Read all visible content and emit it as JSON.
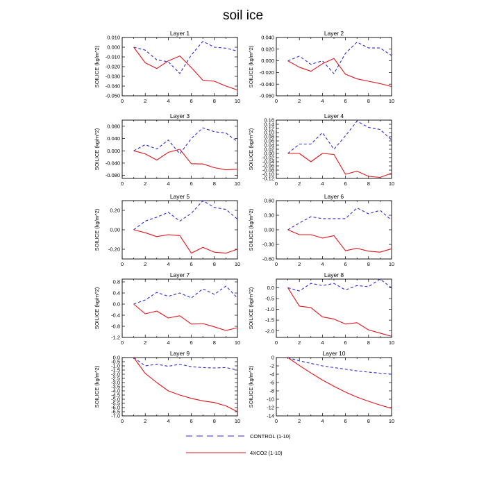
{
  "figure_title": "soil ice",
  "colors": {
    "control": "#2b2bd6",
    "co2": "#e3141b",
    "axis": "#000000"
  },
  "legend": [
    {
      "label": "CONTROL (1-10)",
      "style": "dashed",
      "color": "#2b2bd6"
    },
    {
      "label": "4XCO2 (1-10)",
      "style": "solid",
      "color": "#e3141b"
    }
  ],
  "chart_data": [
    {
      "type": "line",
      "title": "Layer 1",
      "ylabel": "SOILICE  (kg/m^2)",
      "x": [
        1,
        2,
        3,
        4,
        5,
        6,
        7,
        8,
        9,
        10
      ],
      "xlim": [
        0,
        10
      ],
      "xticks": [
        0,
        2,
        4,
        6,
        8,
        10
      ],
      "ylim": [
        -0.05,
        0.01
      ],
      "yticks": [
        -0.05,
        -0.04,
        -0.03,
        -0.02,
        -0.01,
        0,
        0.01
      ],
      "ytick_labels": [
        "-0.050",
        "-0.040",
        "-0.030",
        "-0.020",
        "-0.010",
        "0.000",
        "0.010"
      ],
      "series": [
        {
          "name": "CONTROL (1-10)",
          "style": "dashed",
          "values": [
            0,
            -0.003,
            -0.013,
            -0.015,
            -0.027,
            -0.008,
            0.006,
            0,
            -0.001,
            -0.004
          ]
        },
        {
          "name": "4XCO2 (1-10)",
          "style": "solid",
          "values": [
            0,
            -0.016,
            -0.022,
            -0.014,
            -0.009,
            -0.021,
            -0.034,
            -0.035,
            -0.04,
            -0.044
          ]
        }
      ]
    },
    {
      "type": "line",
      "title": "Layer 2",
      "ylabel": "SOILICE  (kg/m^2)",
      "x": [
        1,
        2,
        3,
        4,
        5,
        6,
        7,
        8,
        9,
        10
      ],
      "xlim": [
        0,
        10
      ],
      "xticks": [
        0,
        2,
        4,
        6,
        8,
        10
      ],
      "ylim": [
        -0.06,
        0.04
      ],
      "yticks": [
        -0.06,
        -0.04,
        -0.02,
        0,
        0.02,
        0.04
      ],
      "ytick_labels": [
        "-0.060",
        "-0.040",
        "-0.020",
        "0.000",
        "0.020",
        "0.040"
      ],
      "series": [
        {
          "name": "CONTROL (1-10)",
          "style": "dashed",
          "values": [
            0,
            0.008,
            -0.006,
            0,
            -0.022,
            0.013,
            0.032,
            0.022,
            0.022,
            0.009
          ]
        },
        {
          "name": "4XCO2 (1-10)",
          "style": "solid",
          "values": [
            0,
            -0.011,
            -0.018,
            -0.005,
            0.004,
            -0.023,
            -0.031,
            -0.035,
            -0.039,
            -0.044
          ]
        }
      ]
    },
    {
      "type": "line",
      "title": "Layer 3",
      "ylabel": "SOILICE  (kg/m^2)",
      "x": [
        1,
        2,
        3,
        4,
        5,
        6,
        7,
        8,
        9,
        10
      ],
      "xlim": [
        0,
        10
      ],
      "xticks": [
        0,
        2,
        4,
        6,
        8,
        10
      ],
      "ylim": [
        -0.09,
        0.1
      ],
      "yticks": [
        -0.08,
        -0.04,
        0,
        0.04,
        0.08
      ],
      "ytick_labels": [
        "-0.080",
        "-0.040",
        "0.000",
        "0.040",
        "0.080"
      ],
      "series": [
        {
          "name": "CONTROL (1-10)",
          "style": "dashed",
          "values": [
            0,
            0.02,
            0.006,
            0.035,
            -0.01,
            0.04,
            0.075,
            0.062,
            0.058,
            0.03
          ]
        },
        {
          "name": "4XCO2 (1-10)",
          "style": "solid",
          "values": [
            0,
            -0.01,
            -0.03,
            -0.005,
            0.005,
            -0.042,
            -0.043,
            -0.055,
            -0.062,
            -0.06
          ]
        }
      ]
    },
    {
      "type": "line",
      "title": "Layer 4",
      "ylabel": "SOILICE  (kg/m^2)",
      "x": [
        1,
        2,
        3,
        4,
        5,
        6,
        7,
        8,
        9,
        10
      ],
      "xlim": [
        0,
        10
      ],
      "xticks": [
        0,
        2,
        4,
        6,
        8,
        10
      ],
      "ylim": [
        -0.12,
        0.16
      ],
      "yticks": [
        -0.12,
        -0.1,
        -0.08,
        -0.06,
        -0.04,
        -0.02,
        0,
        0.02,
        0.04,
        0.06,
        0.08,
        0.1,
        0.12,
        0.14,
        0.16
      ],
      "ytick_labels": [
        "-0.12",
        "-0.10",
        "-0.08",
        "-0.06",
        "-0.04",
        "-0.02",
        "0.00",
        "0.02",
        "0.04",
        "0.06",
        "0.08",
        "0.10",
        "0.12",
        "0.14",
        "0.16"
      ],
      "series": [
        {
          "name": "CONTROL (1-10)",
          "style": "dashed",
          "values": [
            0,
            0.045,
            0.045,
            0.1,
            0.02,
            0.085,
            0.155,
            0.125,
            0.115,
            0.065
          ]
        },
        {
          "name": "4XCO2 (1-10)",
          "style": "solid",
          "values": [
            0,
            0,
            -0.04,
            0,
            -0.005,
            -0.1,
            -0.085,
            -0.11,
            -0.115,
            -0.095
          ]
        }
      ]
    },
    {
      "type": "line",
      "title": "Layer 5",
      "ylabel": "SOILICE  (kg/m^2)",
      "x": [
        1,
        2,
        3,
        4,
        5,
        6,
        7,
        8,
        9,
        10
      ],
      "xlim": [
        0,
        10
      ],
      "xticks": [
        0,
        2,
        4,
        6,
        8,
        10
      ],
      "ylim": [
        -0.3,
        0.3
      ],
      "yticks": [
        -0.2,
        0,
        0.2
      ],
      "ytick_labels": [
        "-0.20",
        "0.00",
        "0.20"
      ],
      "series": [
        {
          "name": "CONTROL (1-10)",
          "style": "dashed",
          "values": [
            0,
            0.09,
            0.13,
            0.18,
            0.09,
            0.17,
            0.3,
            0.23,
            0.21,
            0.11
          ]
        },
        {
          "name": "4XCO2 (1-10)",
          "style": "solid",
          "values": [
            0,
            -0.03,
            -0.07,
            -0.05,
            -0.06,
            -0.24,
            -0.18,
            -0.23,
            -0.24,
            -0.2
          ]
        }
      ]
    },
    {
      "type": "line",
      "title": "Layer 6",
      "ylabel": "SOILICE  (kg/m^2)",
      "x": [
        1,
        2,
        3,
        4,
        5,
        6,
        7,
        8,
        9,
        10
      ],
      "xlim": [
        0,
        10
      ],
      "xticks": [
        0,
        2,
        4,
        6,
        8,
        10
      ],
      "ylim": [
        -0.6,
        0.6
      ],
      "yticks": [
        -0.6,
        -0.3,
        0,
        0.3,
        0.6
      ],
      "ytick_labels": [
        "-0.60",
        "-0.30",
        "0.00",
        "0.30",
        "0.60"
      ],
      "series": [
        {
          "name": "CONTROL (1-10)",
          "style": "dashed",
          "values": [
            0,
            0.14,
            0.27,
            0.23,
            0.23,
            0.23,
            0.45,
            0.33,
            0.4,
            0.2
          ]
        },
        {
          "name": "4XCO2 (1-10)",
          "style": "solid",
          "values": [
            0,
            -0.1,
            -0.1,
            -0.17,
            -0.12,
            -0.43,
            -0.38,
            -0.44,
            -0.46,
            -0.39
          ]
        }
      ]
    },
    {
      "type": "line",
      "title": "Layer 7",
      "ylabel": "SOILICE  (kg/m^2)",
      "x": [
        1,
        2,
        3,
        4,
        5,
        6,
        7,
        8,
        9,
        10
      ],
      "xlim": [
        0,
        10
      ],
      "xticks": [
        0,
        2,
        4,
        6,
        8,
        10
      ],
      "ylim": [
        -1.2,
        0.9
      ],
      "yticks": [
        -1.2,
        -0.8,
        -0.4,
        0,
        0.4,
        0.8
      ],
      "ytick_labels": [
        "-1.2",
        "-0.8",
        "-0.4",
        "0.0",
        "0.4",
        "0.8"
      ],
      "series": [
        {
          "name": "CONTROL (1-10)",
          "style": "dashed",
          "values": [
            0,
            0.15,
            0.42,
            0.28,
            0.4,
            0.22,
            0.55,
            0.35,
            0.65,
            0.22
          ]
        },
        {
          "name": "4XCO2 (1-10)",
          "style": "solid",
          "values": [
            0,
            -0.35,
            -0.25,
            -0.5,
            -0.42,
            -0.72,
            -0.7,
            -0.82,
            -0.95,
            -0.85
          ]
        }
      ]
    },
    {
      "type": "line",
      "title": "Layer 8",
      "ylabel": "SOILICE  (kg/m^2)",
      "x": [
        1,
        2,
        3,
        4,
        5,
        6,
        7,
        8,
        9,
        10
      ],
      "xlim": [
        0,
        10
      ],
      "xticks": [
        0,
        2,
        4,
        6,
        8,
        10
      ],
      "ylim": [
        -2.3,
        0.4
      ],
      "yticks": [
        -2,
        -1.5,
        -1,
        -0.5,
        0
      ],
      "ytick_labels": [
        "-2.0",
        "-1.5",
        "-1.0",
        "-0.5",
        "0.0"
      ],
      "series": [
        {
          "name": "CONTROL (1-10)",
          "style": "dashed",
          "values": [
            0,
            -0.15,
            0.2,
            0.1,
            0.2,
            -0.1,
            0.1,
            0.05,
            0.4,
            0
          ]
        },
        {
          "name": "4XCO2 (1-10)",
          "style": "solid",
          "values": [
            0,
            -0.85,
            -0.92,
            -1.35,
            -1.45,
            -1.68,
            -1.62,
            -1.95,
            -2.1,
            -2.25
          ]
        }
      ]
    },
    {
      "type": "line",
      "title": "Layer 9",
      "ylabel": "SOILICE  (kg/m^2)",
      "x": [
        1,
        2,
        3,
        4,
        5,
        6,
        7,
        8,
        9,
        10
      ],
      "xlim": [
        0,
        10
      ],
      "xticks": [
        0,
        2,
        4,
        6,
        8,
        10
      ],
      "ylim": [
        -7,
        0
      ],
      "yticks": [
        -7,
        -6.5,
        -6,
        -5.5,
        -5,
        -4.5,
        -4,
        -3.5,
        -3,
        -2.5,
        -2,
        -1.5,
        -1,
        -0.5,
        0
      ],
      "ytick_labels": [
        "-7.0",
        "-6.5",
        "-6.0",
        "-5.5",
        "-5.0",
        "-4.5",
        "-4.0",
        "-3.5",
        "-3.0",
        "-2.5",
        "-2.0",
        "-1.5",
        "-1.0",
        "-0.5",
        "0.0"
      ],
      "series": [
        {
          "name": "CONTROL (1-10)",
          "style": "dashed",
          "values": [
            0,
            -1,
            -0.8,
            -1.05,
            -0.8,
            -1.1,
            -1.2,
            -1.25,
            -1.2,
            -1.5
          ]
        },
        {
          "name": "4XCO2 (1-10)",
          "style": "solid",
          "values": [
            0,
            -1.9,
            -3,
            -4,
            -4.5,
            -4.9,
            -5.2,
            -5.4,
            -5.8,
            -6.5
          ]
        }
      ]
    },
    {
      "type": "line",
      "title": "Layer 10",
      "ylabel": "SOILICE  (kg/m^2)",
      "x": [
        1,
        2,
        3,
        4,
        5,
        6,
        7,
        8,
        9,
        10
      ],
      "xlim": [
        0,
        10
      ],
      "xticks": [
        0,
        2,
        4,
        6,
        8,
        10
      ],
      "ylim": [
        -14,
        0
      ],
      "yticks": [
        -14,
        -12,
        -10,
        -8,
        -6,
        -4,
        -2,
        0
      ],
      "ytick_labels": [
        "-14",
        "-12",
        "-10",
        "-8",
        "-6",
        "-4",
        "-2",
        "0"
      ],
      "series": [
        {
          "name": "CONTROL (1-10)",
          "style": "dashed",
          "values": [
            0,
            -0.8,
            -1.4,
            -2,
            -2.4,
            -2.8,
            -3.2,
            -3.5,
            -3.75,
            -4
          ]
        },
        {
          "name": "4XCO2 (1-10)",
          "style": "solid",
          "values": [
            0,
            -1.9,
            -3.7,
            -5.4,
            -6.9,
            -8.3,
            -9.5,
            -10.5,
            -11.4,
            -12.2
          ]
        }
      ]
    }
  ]
}
